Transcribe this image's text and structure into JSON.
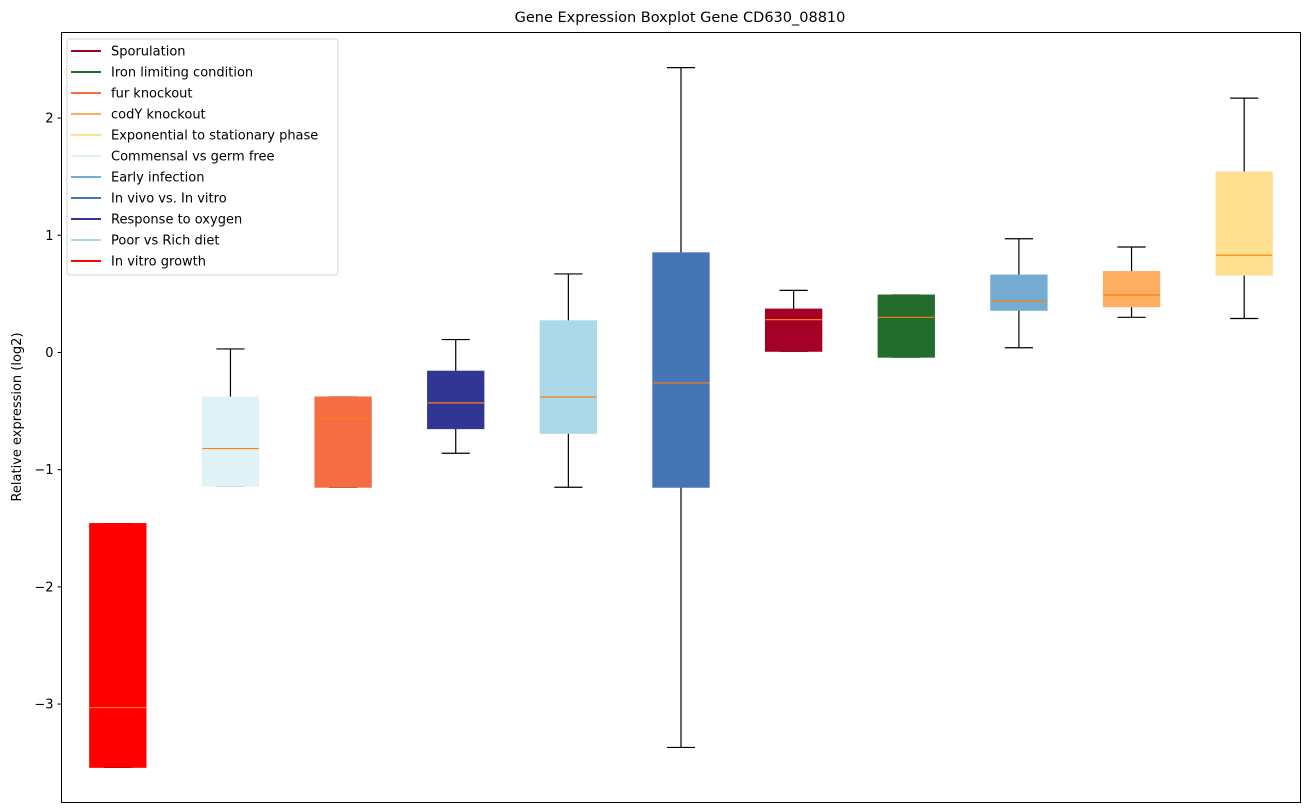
{
  "chart_data": {
    "type": "boxplot",
    "title": "Gene Expression Boxplot Gene CD630_08810",
    "xlabel": "",
    "ylabel": "Relative expression (log2)",
    "ylim": [
      -3.84,
      2.73
    ],
    "yticks": [
      -3,
      -2,
      -1,
      0,
      1,
      2
    ],
    "ytick_labels": [
      "−3",
      "−2",
      "−1",
      "0",
      "1",
      "2"
    ],
    "grid": false,
    "legend_position": "top-left",
    "median_color": "#ff7f0e",
    "series": [
      {
        "name": "In vitro growth",
        "color": "#ff0000",
        "whisker_low": -3.54,
        "q1": -3.54,
        "median": -3.03,
        "q3": -1.46,
        "whisker_high": -1.46
      },
      {
        "name": "Commensal vs germ free",
        "color": "#dff2f8",
        "whisker_low": -1.14,
        "q1": -1.14,
        "median": -0.82,
        "q3": -0.38,
        "whisker_high": 0.03
      },
      {
        "name": "fur knockout",
        "color": "#f46d43",
        "whisker_low": -1.15,
        "q1": -1.15,
        "median": -0.56,
        "q3": -0.38,
        "whisker_high": -0.38
      },
      {
        "name": "Response to oxygen",
        "color": "#313695",
        "whisker_low": -0.86,
        "q1": -0.65,
        "median": -0.43,
        "q3": -0.16,
        "whisker_high": 0.11
      },
      {
        "name": "Poor vs Rich diet",
        "color": "#abd9e9",
        "whisker_low": -1.15,
        "q1": -0.69,
        "median": -0.38,
        "q3": 0.27,
        "whisker_high": 0.67
      },
      {
        "name": "In vivo vs. In vitro",
        "color": "#4575b4",
        "whisker_low": -3.37,
        "q1": -1.15,
        "median": -0.26,
        "q3": 0.85,
        "whisker_high": 2.43
      },
      {
        "name": "Sporulation",
        "color": "#a50026",
        "whisker_low": 0.01,
        "q1": 0.01,
        "median": 0.28,
        "q3": 0.37,
        "whisker_high": 0.53
      },
      {
        "name": "Iron limiting condition",
        "color": "#226c2d",
        "whisker_low": -0.04,
        "q1": -0.04,
        "median": 0.3,
        "q3": 0.49,
        "whisker_high": 0.49
      },
      {
        "name": "Early infection",
        "color": "#74add1",
        "whisker_low": 0.04,
        "q1": 0.36,
        "median": 0.44,
        "q3": 0.66,
        "whisker_high": 0.97
      },
      {
        "name": "codY knockout",
        "color": "#fdae61",
        "whisker_low": 0.3,
        "q1": 0.39,
        "median": 0.49,
        "q3": 0.69,
        "whisker_high": 0.9
      },
      {
        "name": "Exponential to stationary phase",
        "color": "#fee090",
        "whisker_low": 0.29,
        "q1": 0.66,
        "median": 0.83,
        "q3": 1.54,
        "whisker_high": 2.17
      }
    ],
    "legend": [
      {
        "label": "Sporulation",
        "color": "#a50026"
      },
      {
        "label": "Iron limiting condition",
        "color": "#226c2d"
      },
      {
        "label": "fur knockout",
        "color": "#f46d43"
      },
      {
        "label": "codY knockout",
        "color": "#fdae61"
      },
      {
        "label": "Exponential to stationary phase",
        "color": "#fee090"
      },
      {
        "label": "Commensal vs germ free",
        "color": "#dff2f8"
      },
      {
        "label": "Early infection",
        "color": "#74add1"
      },
      {
        "label": "In vivo vs. In vitro",
        "color": "#4575b4"
      },
      {
        "label": "Response to oxygen",
        "color": "#313695"
      },
      {
        "label": "Poor vs Rich diet",
        "color": "#abd9e9"
      },
      {
        "label": "In vitro growth",
        "color": "#ff0000"
      }
    ]
  }
}
